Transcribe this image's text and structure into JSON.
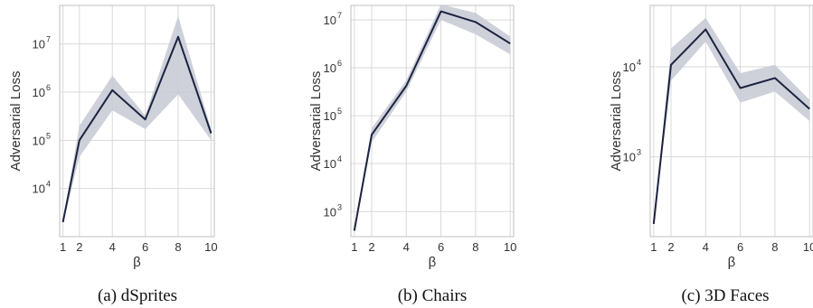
{
  "chart_data": [
    {
      "type": "line",
      "caption": "(a) dSprites",
      "xlabel": "β",
      "ylabel": "Adversarial Loss",
      "yscale": "log",
      "x": [
        1,
        2,
        4,
        6,
        8,
        10
      ],
      "xticks": [
        "1",
        "2",
        "4",
        "6",
        "8",
        "10"
      ],
      "yticks": [
        {
          "exp": "4",
          "value": 10000
        },
        {
          "exp": "5",
          "value": 100000
        },
        {
          "exp": "6",
          "value": 1000000
        },
        {
          "exp": "7",
          "value": 10000000
        }
      ],
      "xlim": [
        0.8,
        10.2
      ],
      "ylim": [
        1000,
        63000000
      ],
      "series": [
        {
          "values": [
            2000,
            100000,
            1100000,
            270000,
            14000000,
            140000
          ],
          "lower": [
            1800,
            45000,
            420000,
            170000,
            900000,
            100000
          ],
          "upper": [
            2200,
            200000,
            2200000,
            330000,
            38000000,
            170000
          ]
        }
      ],
      "grid": true,
      "colors": {
        "line": "#1c2340",
        "band": "#c6c9d3"
      }
    },
    {
      "type": "line",
      "caption": "(b) Chairs",
      "xlabel": "β",
      "ylabel": "Adversarial Loss",
      "yscale": "log",
      "x": [
        1,
        2,
        4,
        6,
        8,
        10
      ],
      "xticks": [
        "1",
        "2",
        "4",
        "6",
        "8",
        "10"
      ],
      "yticks": [
        {
          "exp": "3",
          "value": 1000
        },
        {
          "exp": "4",
          "value": 10000
        },
        {
          "exp": "5",
          "value": 100000
        },
        {
          "exp": "6",
          "value": 1000000
        },
        {
          "exp": "7",
          "value": 10000000
        }
      ],
      "xlim": [
        0.8,
        10.2
      ],
      "ylim": [
        300,
        20000000
      ],
      "series": [
        {
          "values": [
            400,
            40000,
            420000,
            15000000,
            9000000,
            3200000
          ],
          "lower": [
            380,
            28000,
            320000,
            10000000,
            5000000,
            1900000
          ],
          "upper": [
            420,
            55000,
            550000,
            21000000,
            14000000,
            4500000
          ]
        }
      ],
      "grid": true,
      "colors": {
        "line": "#1c2340",
        "band": "#c6c9d3"
      }
    },
    {
      "type": "line",
      "caption": "(c) 3D Faces",
      "xlabel": "β",
      "ylabel": "Adversarial Loss",
      "yscale": "log",
      "x": [
        1,
        2,
        4,
        6,
        8,
        10
      ],
      "xticks": [
        "1",
        "2",
        "4",
        "6",
        "8",
        "10"
      ],
      "yticks": [
        {
          "exp": "3",
          "value": 1000
        },
        {
          "exp": "4",
          "value": 10000
        }
      ],
      "xlim": [
        0.8,
        10.2
      ],
      "ylim": [
        130,
        48000
      ],
      "series": [
        {
          "values": [
            180,
            10500,
            26000,
            5800,
            7500,
            3400
          ],
          "lower": [
            175,
            7000,
            19000,
            4000,
            5300,
            2500
          ],
          "upper": [
            185,
            16000,
            35000,
            8500,
            10500,
            4300
          ]
        }
      ],
      "grid": true,
      "colors": {
        "line": "#1c2340",
        "band": "#c6c9d3"
      }
    }
  ]
}
